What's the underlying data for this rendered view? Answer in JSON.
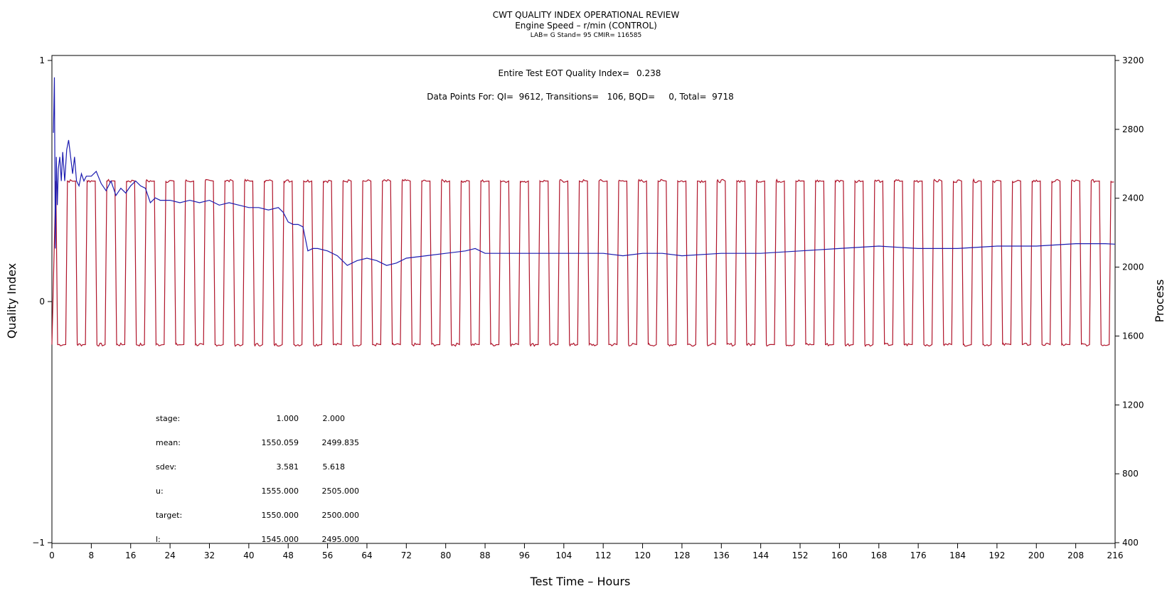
{
  "header": {
    "title": "CWT QUALITY INDEX OPERATIONAL REVIEW",
    "subtitle": "Engine Speed – r/min (CONTROL)",
    "subsubtitle": "LAB= G Stand= 95 CMIR= 116585"
  },
  "annotations": {
    "quality_index_label": "Entire Test EOT Quality Index=",
    "quality_index_value": "0.238",
    "data_points": "Data Points For: QI=  9612, Transitions=   106, BQD=     0, Total=  9718"
  },
  "stats": {
    "rows": [
      {
        "label": "stage:",
        "v1": "1.000",
        "v2": "2.000"
      },
      {
        "label": "mean:",
        "v1": "1550.059",
        "v2": "2499.835"
      },
      {
        "label": "sdev:",
        "v1": "3.581",
        "v2": "5.618"
      },
      {
        "label": "u:",
        "v1": "1555.000",
        "v2": "2505.000"
      },
      {
        "label": "target:",
        "v1": "1550.000",
        "v2": "2500.000"
      },
      {
        "label": "l:",
        "v1": "1545.000",
        "v2": "2495.000"
      }
    ]
  },
  "chart_data": {
    "type": "line",
    "xlabel": "Test Time – Hours",
    "ylabel": "Quality Index",
    "y2label": "Process",
    "xlim": [
      0,
      216
    ],
    "ylim": [
      -1,
      1
    ],
    "y2lim": [
      400,
      3200
    ],
    "x_ticks": [
      0,
      8,
      16,
      24,
      32,
      40,
      48,
      56,
      64,
      72,
      80,
      88,
      96,
      104,
      112,
      120,
      128,
      136,
      144,
      152,
      160,
      168,
      176,
      184,
      192,
      200,
      208,
      216
    ],
    "y_ticks": [
      -1,
      0,
      1
    ],
    "y2_ticks": [
      400,
      800,
      1200,
      1600,
      2000,
      2400,
      2800,
      3200
    ],
    "colors": {
      "quality_index": "#1c1cb0",
      "process": "#b0142a"
    },
    "series": [
      {
        "key": "quality_index",
        "axis": "left",
        "x": [
          0.3,
          0.5,
          0.7,
          0.9,
          1.1,
          1.3,
          1.6,
          1.9,
          2.2,
          2.6,
          3.0,
          3.4,
          3.8,
          4.2,
          4.6,
          5.0,
          5.5,
          6,
          6.5,
          7,
          8,
          9,
          10,
          11,
          12,
          13,
          14,
          15,
          16,
          17,
          18,
          19,
          20,
          21,
          22,
          24,
          26,
          28,
          30,
          32,
          34,
          36,
          38,
          40,
          42,
          44,
          46,
          47,
          48,
          49,
          50,
          51,
          52,
          53,
          54,
          56,
          58,
          60,
          62,
          64,
          66,
          68,
          70,
          72,
          76,
          80,
          84,
          86,
          88,
          92,
          96,
          100,
          104,
          108,
          112,
          116,
          120,
          124,
          128,
          136,
          144,
          152,
          160,
          168,
          176,
          184,
          192,
          200,
          208,
          214,
          216
        ],
        "values": [
          0.7,
          0.93,
          0.22,
          0.6,
          0.4,
          0.55,
          0.6,
          0.5,
          0.62,
          0.5,
          0.63,
          0.67,
          0.6,
          0.53,
          0.6,
          0.5,
          0.48,
          0.53,
          0.5,
          0.52,
          0.52,
          0.54,
          0.49,
          0.46,
          0.5,
          0.44,
          0.47,
          0.45,
          0.48,
          0.5,
          0.48,
          0.47,
          0.41,
          0.43,
          0.42,
          0.42,
          0.41,
          0.42,
          0.41,
          0.42,
          0.4,
          0.41,
          0.4,
          0.39,
          0.39,
          0.38,
          0.39,
          0.37,
          0.33,
          0.32,
          0.32,
          0.31,
          0.21,
          0.22,
          0.22,
          0.21,
          0.19,
          0.15,
          0.17,
          0.18,
          0.17,
          0.15,
          0.16,
          0.18,
          0.19,
          0.2,
          0.21,
          0.22,
          0.2,
          0.2,
          0.2,
          0.2,
          0.2,
          0.2,
          0.2,
          0.19,
          0.2,
          0.2,
          0.19,
          0.2,
          0.2,
          0.21,
          0.22,
          0.23,
          0.22,
          0.22,
          0.23,
          0.23,
          0.24,
          0.24,
          0.238
        ]
      },
      {
        "key": "process",
        "axis": "right",
        "pattern": "square_wave",
        "low": 1550,
        "high": 2500,
        "period_hours": 4,
        "start_hour": 0.8,
        "end_hour": 216
      }
    ]
  }
}
